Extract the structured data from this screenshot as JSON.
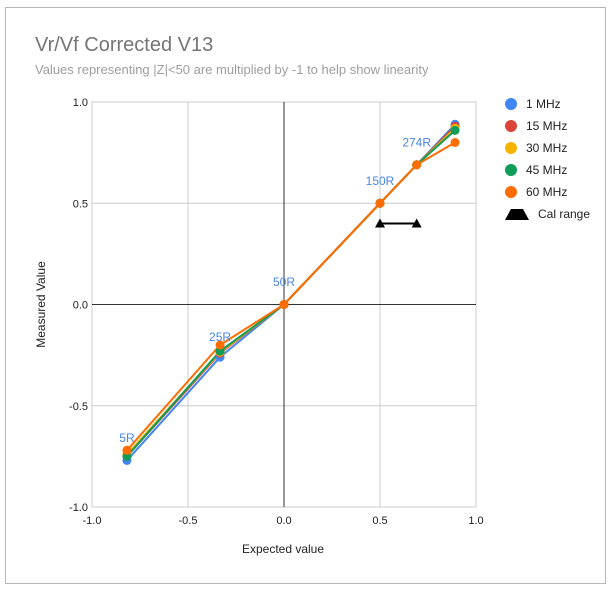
{
  "chart_data": {
    "type": "scatter",
    "title": "Vr/Vf Corrected V13",
    "subtitle": "Values representing |Z|<50 are multiplied by -1 to help show linearity",
    "xlabel": "Expected value",
    "ylabel": "Measured Value",
    "xlim": [
      -1.0,
      1.0
    ],
    "ylim": [
      -1.0,
      1.0
    ],
    "x_ticks": [
      "-1.0",
      "-0.5",
      "0.0",
      "0.5",
      "1.0"
    ],
    "y_ticks": [
      "1.0",
      "0.5",
      "0.0",
      "-0.5",
      "-1.0"
    ],
    "grid": true,
    "legend_position": "right",
    "x": [
      -0.818,
      -0.333,
      0.0,
      0.5,
      0.691,
      0.891
    ],
    "series": [
      {
        "name": "1 MHz",
        "color": "#4285f4",
        "values": [
          -0.77,
          -0.26,
          0.0,
          0.5,
          0.69,
          0.89
        ]
      },
      {
        "name": "15 MHz",
        "color": "#db4437",
        "values": [
          -0.75,
          -0.24,
          0.0,
          0.5,
          0.69,
          0.88
        ]
      },
      {
        "name": "30 MHz",
        "color": "#f4b400",
        "values": [
          -0.74,
          -0.235,
          0.0,
          0.5,
          0.69,
          0.87
        ]
      },
      {
        "name": "45 MHz",
        "color": "#0f9d58",
        "values": [
          -0.75,
          -0.23,
          0.0,
          0.5,
          0.69,
          0.86
        ]
      },
      {
        "name": "60 MHz",
        "color": "#ff6d01",
        "values": [
          -0.72,
          -0.2,
          0.0,
          0.5,
          0.69,
          0.8
        ]
      }
    ],
    "cal_range": {
      "name": "Cal range",
      "color": "#000000",
      "x": [
        0.5,
        0.691
      ],
      "y": [
        0.4,
        0.4
      ]
    },
    "annotations": [
      {
        "text": "5R",
        "x": -0.818,
        "y": -0.66
      },
      {
        "text": "25R",
        "x": -0.333,
        "y": -0.16
      },
      {
        "text": "50R",
        "x": 0.0,
        "y": 0.11
      },
      {
        "text": "150R",
        "x": 0.5,
        "y": 0.61
      },
      {
        "text": "274R",
        "x": 0.691,
        "y": 0.8
      }
    ]
  }
}
